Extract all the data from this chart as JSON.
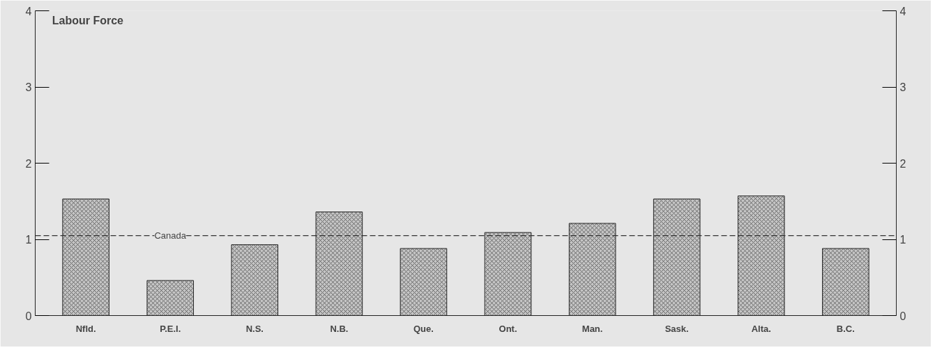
{
  "chart_data": {
    "type": "bar",
    "title": "Labour Force",
    "categories": [
      "Nfld.",
      "P.E.I.",
      "N.S.",
      "N.B.",
      "Que.",
      "Ont.",
      "Man.",
      "Sask.",
      "Alta.",
      "B.C."
    ],
    "values": [
      1.53,
      0.46,
      0.93,
      1.36,
      0.88,
      1.09,
      1.21,
      1.53,
      1.57,
      0.88
    ],
    "color": "#c4c4c4",
    "ylim": [
      0,
      4
    ],
    "yticks": [
      0,
      1,
      2,
      3,
      4
    ],
    "y2lim": [
      0,
      4
    ],
    "y2ticks": [
      0,
      1,
      2,
      3,
      4
    ],
    "ref_lines": [
      {
        "axis": "y",
        "value": 1.05,
        "label": "Canada",
        "line_style": "dashed",
        "color": "#333333"
      }
    ]
  }
}
